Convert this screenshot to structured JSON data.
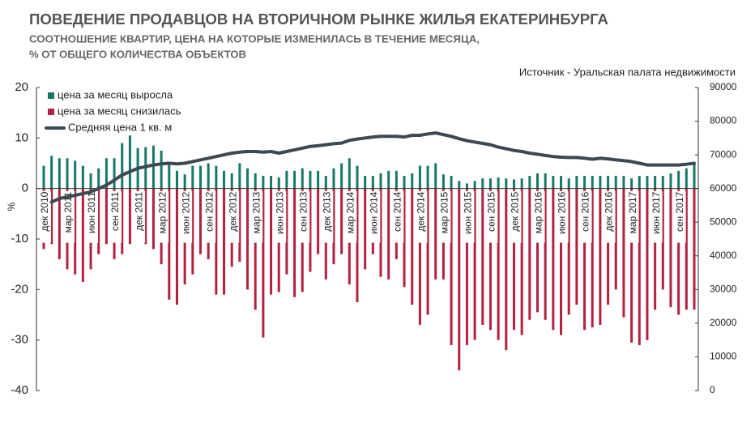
{
  "chart_data": {
    "type": "bar",
    "title": "ПОВЕДЕНИЕ ПРОДАВЦОВ НА ВТОРИЧНОМ РЫНКЕ ЖИЛЬЯ ЕКАТЕРИНБУРГА",
    "subtitle": [
      "СООТНОШЕНИЕ КВАРТИР, ЦЕНА НА КОТОРЫЕ ИЗМЕНИЛАСЬ В ТЕЧЕНИЕ МЕСЯЦА,",
      "% ОТ ОБЩЕГО КОЛИЧЕСТВА ОБЪЕКТОВ"
    ],
    "source": "Источник - Уральская палата недвижимости",
    "y_label": "%",
    "categories": [
      "дек 2010",
      null,
      null,
      "мар 2011",
      null,
      null,
      "июн 2011",
      null,
      null,
      "сен 2011",
      null,
      null,
      "дек 2011",
      null,
      null,
      "мар 2012",
      null,
      null,
      "июн 2012",
      null,
      null,
      "сен 2012",
      null,
      null,
      "дек 2012",
      null,
      null,
      "мар 2013",
      null,
      null,
      "июн 2013",
      null,
      null,
      "сен 2013",
      null,
      null,
      "дек 2013",
      null,
      null,
      "мар 2014",
      null,
      null,
      "июн 2014",
      null,
      null,
      "сен 2014",
      null,
      null,
      "дек 2014",
      null,
      null,
      "мар 2015",
      null,
      null,
      "июн 2015",
      null,
      null,
      "сен 2015",
      null,
      null,
      "дек 2015",
      null,
      null,
      "мар 2016",
      null,
      null,
      "июн 2016",
      null,
      null,
      "сен 2016",
      null,
      null,
      "дек 2016",
      null,
      null,
      "мар 2017",
      null,
      null,
      "июн 2017",
      null,
      null,
      "сен 2017",
      null,
      null
    ],
    "series": [
      {
        "name": "цена за месяц выросла",
        "color": "#17776a",
        "values": [
          4.5,
          6.5,
          6,
          6,
          5.5,
          4.5,
          3,
          4,
          6,
          6,
          9,
          10.5,
          8,
          8.2,
          8.5,
          7.5,
          5,
          3.5,
          2.8,
          4.5,
          4.5,
          5,
          4.5,
          3.5,
          3,
          5,
          4,
          3,
          2.5,
          2.5,
          2.2,
          3.5,
          3.5,
          4,
          3.5,
          3.5,
          2.5,
          4,
          5,
          6,
          4.5,
          2.5,
          2.5,
          3,
          3.5,
          3.5,
          2.5,
          3,
          4.5,
          4.5,
          5,
          2.8,
          2.5,
          1.5,
          1,
          1.5,
          2,
          2,
          2.2,
          2,
          1.8,
          2,
          2.5,
          3,
          3,
          2.5,
          2.5,
          2,
          2.5,
          2.5,
          2.5,
          2.5,
          2.5,
          2.5,
          2.5,
          2,
          2.5,
          2.5,
          2.5,
          2.5,
          3,
          3.5,
          4,
          5
        ]
      },
      {
        "name": "цена за месяц снизилась",
        "color": "#b2213d",
        "values": [
          -12,
          -11,
          -14,
          -16,
          -17,
          -18.5,
          -16,
          -13,
          -11,
          -14,
          -13,
          -11,
          -10.5,
          -11,
          -12,
          -15,
          -22,
          -23,
          -19,
          -17,
          -13,
          -14,
          -21,
          -21,
          -15.5,
          -14.5,
          -20,
          -24,
          -29.5,
          -21,
          -20.5,
          -17,
          -21.5,
          -20.5,
          -16.5,
          -13,
          -18,
          -15,
          -13,
          -19,
          -22.5,
          -16,
          -13,
          -17.5,
          -18,
          -14,
          -19.5,
          -23,
          -27,
          -25,
          -18,
          -18,
          -31,
          -36,
          -31,
          -30,
          -27,
          -28,
          -30,
          -32,
          -28,
          -29,
          -26,
          -24.5,
          -26,
          -28,
          -29,
          -25,
          -23,
          -28,
          -27.5,
          -27,
          -23,
          -20,
          -25.5,
          -30.5,
          -31,
          -30,
          -24,
          -20,
          -23.5,
          -25,
          -24,
          -24
        ]
      },
      {
        "name": "Средняя цена 1 кв. м",
        "color": "#3c4853",
        "type": "line",
        "axis": "y2",
        "values": [
          null,
          56000,
          57000,
          57500,
          58000,
          58500,
          59000,
          60000,
          61000,
          62500,
          64000,
          65000,
          66000,
          66500,
          67000,
          67300,
          67500,
          67300,
          67500,
          68000,
          68500,
          69000,
          69500,
          70000,
          70500,
          70800,
          71000,
          71000,
          70800,
          71000,
          70500,
          71000,
          71500,
          72000,
          72500,
          72700,
          73000,
          73300,
          73500,
          74300,
          74700,
          75000,
          75300,
          75500,
          75500,
          75500,
          75300,
          75800,
          75800,
          76200,
          76500,
          76000,
          75500,
          74800,
          74200,
          73800,
          73400,
          73000,
          72300,
          71800,
          71300,
          71000,
          70500,
          70200,
          69800,
          69500,
          69300,
          69200,
          69200,
          69000,
          68700,
          69000,
          68800,
          68500,
          68300,
          68000,
          67500,
          67000,
          67000,
          67000,
          67000,
          67000,
          67200,
          67500
        ]
      }
    ],
    "ylim": [
      -40,
      20
    ],
    "yticks": [
      -40,
      -30,
      -20,
      -10,
      0,
      10,
      20
    ],
    "y2lim": [
      0,
      90000
    ],
    "y2ticks": [
      0,
      10000,
      20000,
      30000,
      40000,
      50000,
      60000,
      70000,
      80000,
      90000
    ],
    "legend": "upper left"
  }
}
